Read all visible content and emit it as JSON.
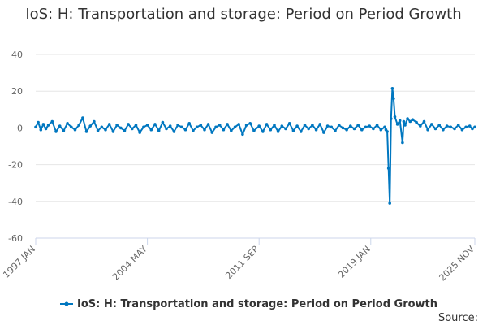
{
  "chart_data": {
    "type": "line",
    "title": "IoS: H: Transportation and storage: Period on Period Growth",
    "xlabel": "",
    "ylabel": "",
    "ylim": [
      -60,
      40
    ],
    "yticks": [
      40,
      20,
      0,
      -20,
      -40,
      -60
    ],
    "xticks": [
      "1997 JAN",
      "2004 MAY",
      "2011 SEP",
      "2019 JAN",
      "2025 NOV"
    ],
    "x_range": [
      "1997 JAN",
      "2025 NOV"
    ],
    "grid": true,
    "legend_position": "bottom",
    "series": [
      {
        "name": "IoS: H: Transportation and storage: Period on Period Growth",
        "color": "#0077c0",
        "marker": "circle",
        "points": [
          [
            "1997 JAN",
            0.5
          ],
          [
            "1997 MAR",
            3.0
          ],
          [
            "1997 MAY",
            -1.0
          ],
          [
            "1997 JUL",
            2.0
          ],
          [
            "1997 SEP",
            -0.5
          ],
          [
            "1997 NOV",
            1.5
          ],
          [
            "1998 FEB",
            3.5
          ],
          [
            "1998 MAY",
            -2.0
          ],
          [
            "1998 AUG",
            1.0
          ],
          [
            "1998 NOV",
            -1.5
          ],
          [
            "1999 FEB",
            2.5
          ],
          [
            "1999 MAY",
            0.5
          ],
          [
            "1999 AUG",
            -1.0
          ],
          [
            "1999 NOV",
            1.5
          ],
          [
            "2000 FEB",
            5.5
          ],
          [
            "2000 MAY",
            -2.0
          ],
          [
            "2000 AUG",
            1.0
          ],
          [
            "2000 NOV",
            3.5
          ],
          [
            "2001 FEB",
            -1.5
          ],
          [
            "2001 MAY",
            0.5
          ],
          [
            "2001 AUG",
            -1.0
          ],
          [
            "2001 NOV",
            2.0
          ],
          [
            "2002 FEB",
            -2.0
          ],
          [
            "2002 MAY",
            1.5
          ],
          [
            "2002 AUG",
            0.0
          ],
          [
            "2002 NOV",
            -1.5
          ],
          [
            "2003 FEB",
            2.0
          ],
          [
            "2003 MAY",
            -0.5
          ],
          [
            "2003 AUG",
            1.5
          ],
          [
            "2003 NOV",
            -2.5
          ],
          [
            "2004 FEB",
            0.5
          ],
          [
            "2004 MAY",
            1.5
          ],
          [
            "2004 AUG",
            -1.0
          ],
          [
            "2004 NOV",
            2.0
          ],
          [
            "2005 FEB",
            -1.5
          ],
          [
            "2005 MAY",
            3.0
          ],
          [
            "2005 AUG",
            -0.5
          ],
          [
            "2005 NOV",
            1.0
          ],
          [
            "2006 FEB",
            -2.0
          ],
          [
            "2006 MAY",
            1.5
          ],
          [
            "2006 AUG",
            0.5
          ],
          [
            "2006 NOV",
            -1.0
          ],
          [
            "2007 FEB",
            2.5
          ],
          [
            "2007 MAY",
            -1.5
          ],
          [
            "2007 AUG",
            0.5
          ],
          [
            "2007 NOV",
            1.5
          ],
          [
            "2008 FEB",
            -1.0
          ],
          [
            "2008 MAY",
            2.0
          ],
          [
            "2008 AUG",
            -2.5
          ],
          [
            "2008 NOV",
            0.5
          ],
          [
            "2009 FEB",
            1.5
          ],
          [
            "2009 MAY",
            -1.0
          ],
          [
            "2009 AUG",
            2.0
          ],
          [
            "2009 NOV",
            -1.5
          ],
          [
            "2010 FEB",
            0.5
          ],
          [
            "2010 MAY",
            2.0
          ],
          [
            "2010 AUG",
            -3.5
          ],
          [
            "2010 NOV",
            1.5
          ],
          [
            "2011 FEB",
            2.5
          ],
          [
            "2011 MAY",
            -1.5
          ],
          [
            "2011 SEP",
            1.0
          ],
          [
            "2011 DEC",
            -2.0
          ],
          [
            "2012 MAR",
            2.0
          ],
          [
            "2012 JUN",
            -1.0
          ],
          [
            "2012 SEP",
            1.5
          ],
          [
            "2012 DEC",
            -2.0
          ],
          [
            "2013 MAR",
            1.0
          ],
          [
            "2013 JUN",
            -0.5
          ],
          [
            "2013 SEP",
            2.5
          ],
          [
            "2013 DEC",
            -1.5
          ],
          [
            "2014 MAR",
            1.0
          ],
          [
            "2014 JUN",
            -2.0
          ],
          [
            "2014 SEP",
            1.5
          ],
          [
            "2014 DEC",
            -0.5
          ],
          [
            "2015 MAR",
            1.5
          ],
          [
            "2015 JUN",
            -1.0
          ],
          [
            "2015 SEP",
            2.0
          ],
          [
            "2015 DEC",
            -2.5
          ],
          [
            "2016 MAR",
            1.0
          ],
          [
            "2016 JUN",
            0.5
          ],
          [
            "2016 SEP",
            -1.5
          ],
          [
            "2016 DEC",
            1.5
          ],
          [
            "2017 MAR",
            0.0
          ],
          [
            "2017 JUN",
            -1.0
          ],
          [
            "2017 SEP",
            1.0
          ],
          [
            "2017 DEC",
            -0.5
          ],
          [
            "2018 MAR",
            1.5
          ],
          [
            "2018 JUN",
            -1.0
          ],
          [
            "2018 SEP",
            0.5
          ],
          [
            "2018 DEC",
            1.0
          ],
          [
            "2019 MAR",
            -0.5
          ],
          [
            "2019 JUN",
            1.5
          ],
          [
            "2019 SEP",
            -1.0
          ],
          [
            "2019 DEC",
            0.5
          ],
          [
            "2020 JAN",
            -1.0
          ],
          [
            "2020 FEB",
            -2.0
          ],
          [
            "2020 MAR",
            -22.0
          ],
          [
            "2020 APR",
            -41.0
          ],
          [
            "2020 MAY",
            5.0
          ],
          [
            "2020 JUN",
            21.5
          ],
          [
            "2020 JUL",
            16.0
          ],
          [
            "2020 AUG",
            6.0
          ],
          [
            "2020 OCT",
            2.0
          ],
          [
            "2020 DEC",
            4.0
          ],
          [
            "2021 FEB",
            -8.0
          ],
          [
            "2021 MAR",
            3.5
          ],
          [
            "2021 APR",
            1.5
          ],
          [
            "2021 JUN",
            5.0
          ],
          [
            "2021 AUG",
            3.5
          ],
          [
            "2021 OCT",
            4.5
          ],
          [
            "2022 JAN",
            3.0
          ],
          [
            "2022 APR",
            1.0
          ],
          [
            "2022 JUL",
            3.5
          ],
          [
            "2022 OCT",
            -1.0
          ],
          [
            "2023 JAN",
            2.0
          ],
          [
            "2023 APR",
            -0.5
          ],
          [
            "2023 JUL",
            1.5
          ],
          [
            "2023 OCT",
            -1.0
          ],
          [
            "2024 JAN",
            1.0
          ],
          [
            "2024 APR",
            0.5
          ],
          [
            "2024 JUL",
            -0.5
          ],
          [
            "2024 OCT",
            1.5
          ],
          [
            "2025 JAN",
            -1.0
          ],
          [
            "2025 APR",
            0.5
          ],
          [
            "2025 JUL",
            1.0
          ],
          [
            "2025 SEP",
            -0.5
          ],
          [
            "2025 NOV",
            0.5
          ]
        ]
      }
    ]
  },
  "footer": {
    "source_label": "Source:"
  }
}
